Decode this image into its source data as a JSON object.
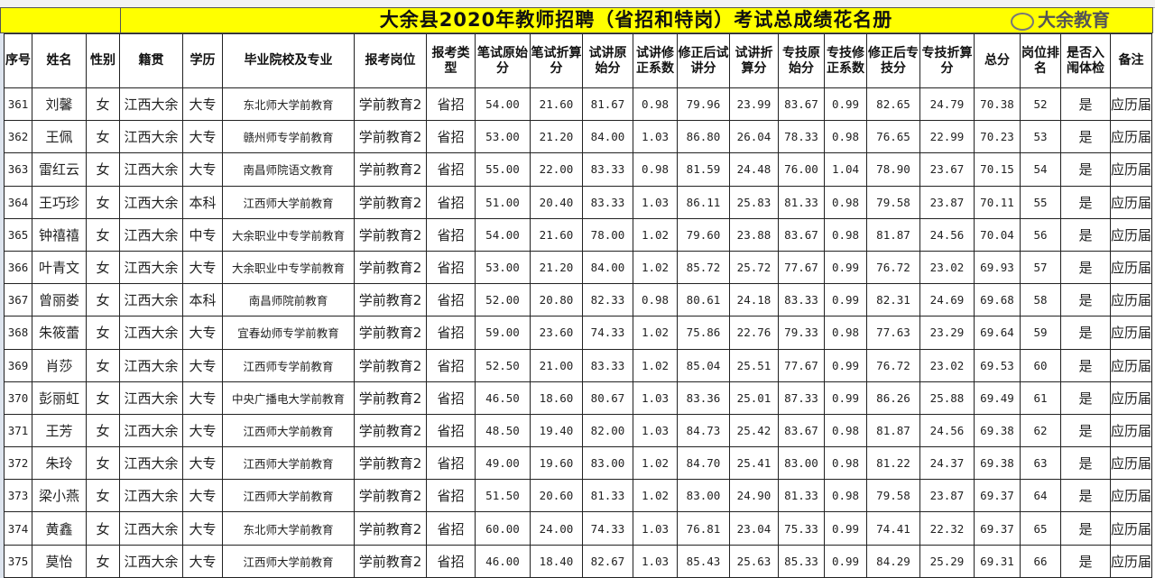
{
  "title": "大余县2020年教师招聘（省招和特岗）考试总成绩花名册",
  "headers": [
    "序号",
    "姓名",
    "性别",
    "籍贯",
    "学历",
    "毕业院校及专业",
    "报考岗位",
    "报考类型",
    "笔试原始分",
    "笔试折算分",
    "试讲原始分",
    "试讲修正系数",
    "修正后试讲分",
    "试讲折算分",
    "专技原始分",
    "专技修正系数",
    "修正后专技分",
    "专技折算分",
    "总分",
    "岗位排名",
    "是否入闱体检",
    "备注"
  ],
  "rows": [
    [
      "361",
      "刘馨",
      "女",
      "江西大余",
      "大专",
      "东北师大学前教育",
      "学前教育2",
      "省招",
      "54.00",
      "21.60",
      "81.67",
      "0.98",
      "79.96",
      "23.99",
      "83.67",
      "0.99",
      "82.65",
      "24.79",
      "70.38",
      "52",
      "是",
      "应历届"
    ],
    [
      "362",
      "王佩",
      "女",
      "江西大余",
      "大专",
      "赣州师专学前教育",
      "学前教育2",
      "省招",
      "53.00",
      "21.20",
      "84.00",
      "1.03",
      "86.80",
      "26.04",
      "78.33",
      "0.98",
      "76.65",
      "22.99",
      "70.23",
      "53",
      "是",
      "应历届"
    ],
    [
      "363",
      "雷红云",
      "女",
      "江西大余",
      "大专",
      "南昌师院语文教育",
      "学前教育2",
      "省招",
      "55.00",
      "22.00",
      "83.33",
      "0.98",
      "81.59",
      "24.48",
      "76.00",
      "1.04",
      "78.90",
      "23.67",
      "70.15",
      "54",
      "是",
      "应历届"
    ],
    [
      "364",
      "王巧珍",
      "女",
      "江西大余",
      "本科",
      "江西师大学前教育",
      "学前教育2",
      "省招",
      "51.00",
      "20.40",
      "83.33",
      "1.03",
      "86.11",
      "25.83",
      "81.33",
      "0.98",
      "79.58",
      "23.87",
      "70.11",
      "55",
      "是",
      "应历届"
    ],
    [
      "365",
      "钟禧禧",
      "女",
      "江西大余",
      "中专",
      "大余职业中专学前教育",
      "学前教育2",
      "省招",
      "54.00",
      "21.60",
      "78.00",
      "1.02",
      "79.60",
      "23.88",
      "83.67",
      "0.98",
      "81.87",
      "24.56",
      "70.04",
      "56",
      "是",
      "应历届"
    ],
    [
      "366",
      "叶青文",
      "女",
      "江西大余",
      "大专",
      "大余职业中专学前教育",
      "学前教育2",
      "省招",
      "53.00",
      "21.20",
      "84.00",
      "1.02",
      "85.72",
      "25.72",
      "77.67",
      "0.99",
      "76.72",
      "23.02",
      "69.93",
      "57",
      "是",
      "应历届"
    ],
    [
      "367",
      "曾丽娄",
      "女",
      "江西大余",
      "本科",
      "南昌师院前教育",
      "学前教育2",
      "省招",
      "52.00",
      "20.80",
      "82.33",
      "0.98",
      "80.61",
      "24.18",
      "83.33",
      "0.99",
      "82.31",
      "24.69",
      "69.68",
      "58",
      "是",
      "应历届"
    ],
    [
      "368",
      "朱筱蕾",
      "女",
      "江西大余",
      "大专",
      "宜春幼师专学前教育",
      "学前教育2",
      "省招",
      "59.00",
      "23.60",
      "74.33",
      "1.02",
      "75.86",
      "22.76",
      "79.33",
      "0.98",
      "77.63",
      "23.29",
      "69.64",
      "59",
      "是",
      "应历届"
    ],
    [
      "369",
      "肖莎",
      "女",
      "江西大余",
      "大专",
      "江西师专学前教育",
      "学前教育2",
      "省招",
      "52.50",
      "21.00",
      "83.33",
      "1.02",
      "85.04",
      "25.51",
      "77.67",
      "0.99",
      "76.72",
      "23.02",
      "69.53",
      "60",
      "是",
      "应历届"
    ],
    [
      "370",
      "彭丽虹",
      "女",
      "江西大余",
      "大专",
      "中央广播电大学前教育",
      "学前教育2",
      "省招",
      "46.50",
      "18.60",
      "80.67",
      "1.03",
      "83.36",
      "25.01",
      "87.33",
      "0.99",
      "86.26",
      "25.88",
      "69.49",
      "61",
      "是",
      "应历届"
    ],
    [
      "371",
      "王芳",
      "女",
      "江西大余",
      "大专",
      "江西师大学前教育",
      "学前教育2",
      "省招",
      "48.50",
      "19.40",
      "82.00",
      "1.03",
      "84.73",
      "25.42",
      "83.67",
      "0.98",
      "81.87",
      "24.56",
      "69.38",
      "62",
      "是",
      "应历届"
    ],
    [
      "372",
      "朱玲",
      "女",
      "江西大余",
      "大专",
      "江西师大学前教育",
      "学前教育2",
      "省招",
      "49.00",
      "19.60",
      "83.00",
      "1.02",
      "84.70",
      "25.41",
      "83.00",
      "0.98",
      "81.22",
      "24.37",
      "69.38",
      "63",
      "是",
      "应历届"
    ],
    [
      "373",
      "梁小燕",
      "女",
      "江西大余",
      "大专",
      "江西师大学前教育",
      "学前教育2",
      "省招",
      "51.50",
      "20.60",
      "81.33",
      "1.02",
      "83.00",
      "24.90",
      "81.33",
      "0.98",
      "79.58",
      "23.87",
      "69.37",
      "64",
      "是",
      "应历届"
    ],
    [
      "374",
      "黄鑫",
      "女",
      "江西大余",
      "大专",
      "东北师大学前教育",
      "学前教育2",
      "省招",
      "60.00",
      "24.00",
      "74.33",
      "1.03",
      "76.81",
      "23.04",
      "75.33",
      "0.99",
      "74.41",
      "22.32",
      "69.37",
      "65",
      "是",
      "应历届"
    ],
    [
      "375",
      "莫怡",
      "女",
      "江西大余",
      "大专",
      "江西师大学前教育",
      "学前教育2",
      "省招",
      "46.00",
      "18.40",
      "82.67",
      "1.03",
      "85.43",
      "25.63",
      "85.33",
      "0.99",
      "84.29",
      "25.29",
      "69.31",
      "66",
      "是",
      "应历届"
    ]
  ],
  "watermark": "大余教育",
  "colors": {
    "title_bg": "#ffff00"
  }
}
